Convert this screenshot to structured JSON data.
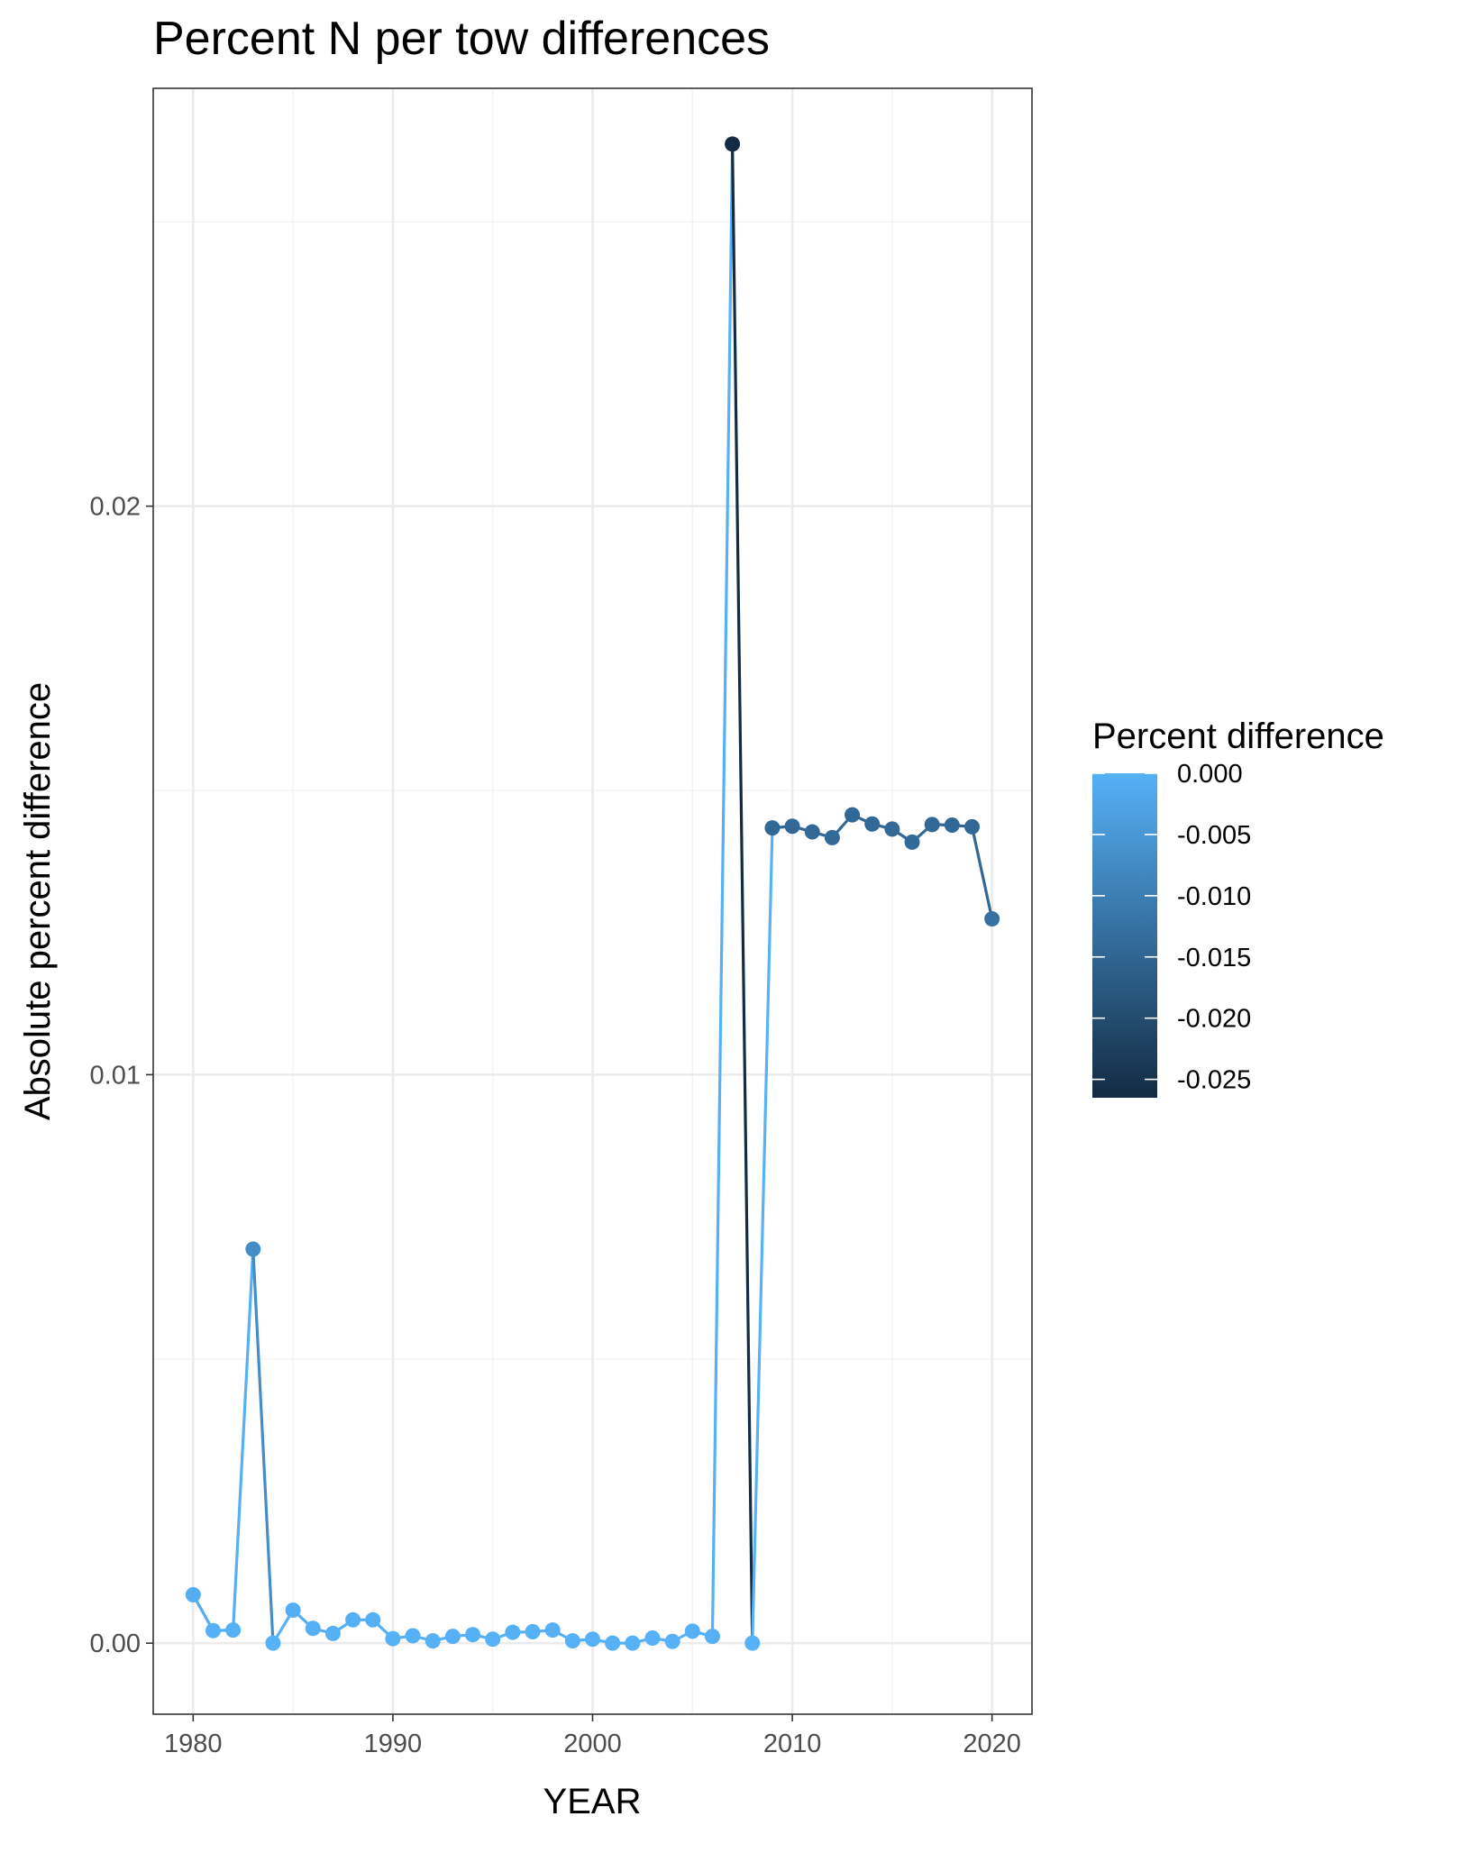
{
  "chart_data": {
    "type": "line",
    "title": "Percent N per tow differences",
    "xlabel": "YEAR",
    "ylabel": "Absolute percent difference",
    "xlim": [
      1978,
      2022
    ],
    "ylim": [
      -0.00125,
      0.02735
    ],
    "x_ticks": [
      1980,
      1990,
      2000,
      2010,
      2020
    ],
    "x_tick_labels": [
      "1980",
      "1990",
      "2000",
      "2010",
      "2020"
    ],
    "y_ticks": [
      0.0,
      0.01,
      0.02
    ],
    "y_tick_labels": [
      "0.00",
      "0.01",
      "0.02"
    ],
    "grid": true,
    "legend": {
      "title": "Percent difference",
      "placement": "right",
      "type": "colorbar",
      "range": [
        -0.0265,
        0.0
      ],
      "ticks": [
        0.0,
        -0.005,
        -0.01,
        -0.015,
        -0.02,
        -0.025
      ],
      "tick_labels": [
        "0.000",
        "-0.005",
        "-0.010",
        "-0.015",
        "-0.020",
        "-0.025"
      ],
      "color_low": "#132B43",
      "color_high": "#56B1F7"
    },
    "series": [
      {
        "x": [
          1980,
          1981,
          1982,
          1983,
          1984,
          1985,
          1986,
          1987,
          1988,
          1989,
          1990,
          1991,
          1992,
          1993,
          1994,
          1995,
          1996,
          1997,
          1998,
          1999,
          2000,
          2001,
          2002,
          2003,
          2004,
          2005,
          2006,
          2007,
          2008,
          2009,
          2010,
          2011,
          2012,
          2013,
          2014,
          2015,
          2016,
          2017,
          2018,
          2019,
          2020
        ],
        "y": [
          0.00085,
          0.00022,
          0.00023,
          0.00693,
          0.0,
          0.00058,
          0.00026,
          0.00017,
          0.00041,
          0.00041,
          8e-05,
          0.00013,
          4e-05,
          0.00012,
          0.00015,
          7e-05,
          0.00019,
          0.0002,
          0.00023,
          4e-05,
          7e-05,
          0.0,
          0.0,
          9e-05,
          3e-05,
          0.00021,
          0.00012,
          0.02637,
          0.0,
          0.01434,
          0.01437,
          0.01427,
          0.01417,
          0.01457,
          0.01441,
          0.01432,
          0.01409,
          0.0144,
          0.01439,
          0.01436,
          0.01274
        ],
        "color_values": [
          -0.00085,
          -0.00022,
          -0.00023,
          -0.00693,
          0.0,
          -0.00058,
          -0.00026,
          -0.00017,
          -0.00041,
          -0.00041,
          -8e-05,
          -0.00013,
          -4e-05,
          -0.00012,
          -0.00015,
          -7e-05,
          -0.00019,
          -0.0002,
          -0.00023,
          -4e-05,
          -7e-05,
          0.0,
          0.0,
          -9e-05,
          -3e-05,
          -0.00021,
          -0.00012,
          -0.02637,
          0.0,
          -0.01434,
          -0.01437,
          -0.01427,
          -0.01417,
          -0.01457,
          -0.01441,
          -0.01432,
          -0.01409,
          -0.0144,
          -0.01439,
          -0.01436,
          -0.01274
        ]
      }
    ]
  }
}
